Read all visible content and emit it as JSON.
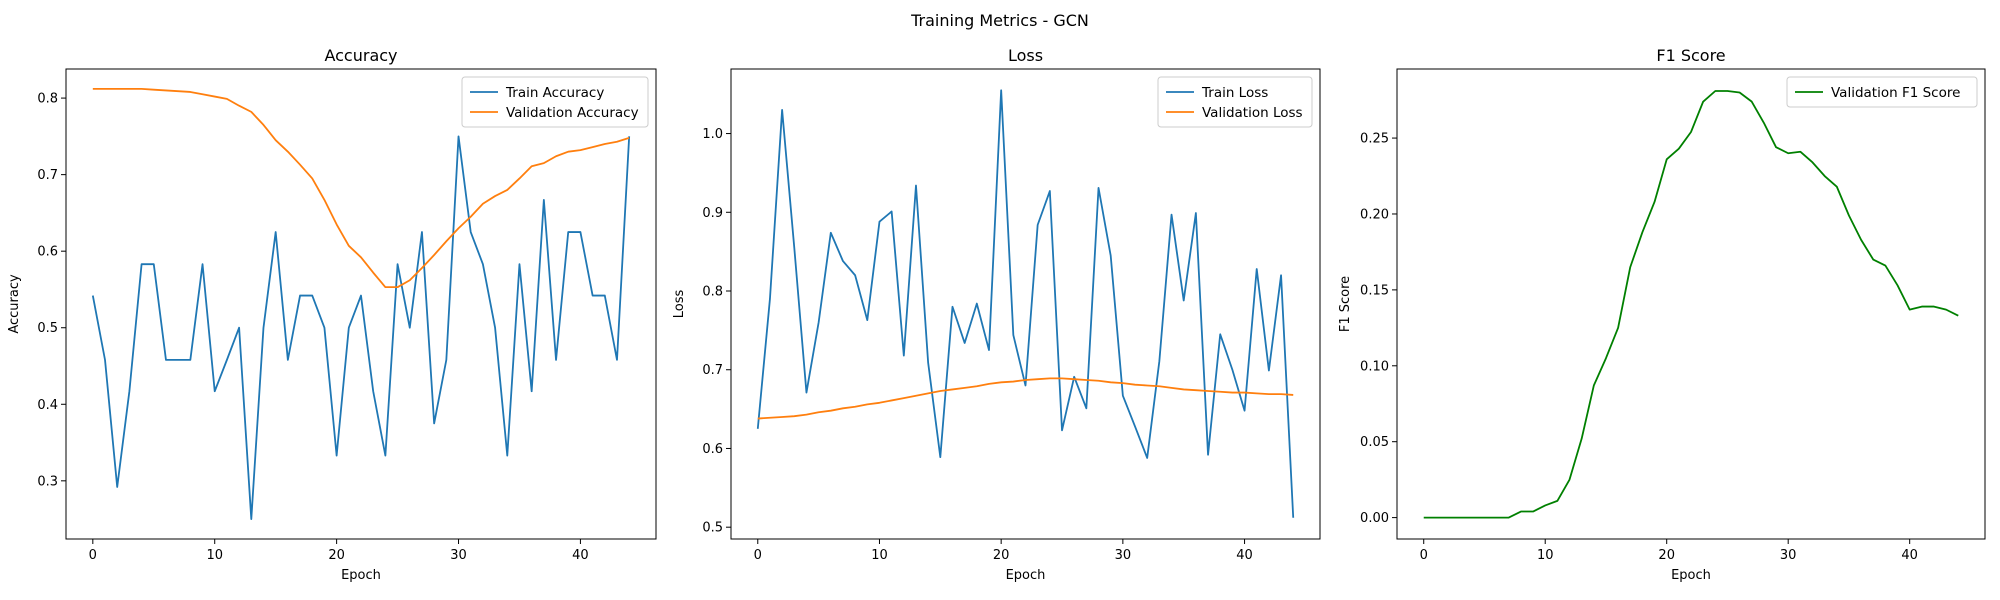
{
  "figure": {
    "title": "Training Metrics - GCN"
  },
  "chart_data": [
    {
      "type": "line",
      "title": "Accuracy",
      "xlabel": "Epoch",
      "ylabel": "Accuracy",
      "xlim": [
        -2.2,
        46.2
      ],
      "ylim": [
        0.224,
        0.838
      ],
      "xticks": [
        0,
        10,
        20,
        30,
        40
      ],
      "yticks": [
        0.3,
        0.4,
        0.5,
        0.6,
        0.7,
        0.8
      ],
      "ytick_labels": [
        "0.3",
        "0.4",
        "0.5",
        "0.6",
        "0.7",
        "0.8"
      ],
      "legend": "top-right",
      "series": [
        {
          "name": "Train Accuracy",
          "color": "#1f77b4",
          "x": [
            0,
            1,
            2,
            3,
            4,
            5,
            6,
            7,
            8,
            9,
            10,
            11,
            12,
            13,
            14,
            15,
            16,
            17,
            18,
            19,
            20,
            21,
            22,
            23,
            24,
            25,
            26,
            27,
            28,
            29,
            30,
            31,
            32,
            33,
            34,
            35,
            36,
            37,
            38,
            39,
            40,
            41,
            42,
            43,
            44
          ],
          "y": [
            0.542,
            0.458,
            0.292,
            0.417,
            0.583,
            0.583,
            0.458,
            0.458,
            0.458,
            0.583,
            0.417,
            0.458,
            0.5,
            0.25,
            0.5,
            0.625,
            0.458,
            0.542,
            0.542,
            0.5,
            0.333,
            0.5,
            0.542,
            0.417,
            0.333,
            0.583,
            0.5,
            0.625,
            0.375,
            0.458,
            0.75,
            0.625,
            0.583,
            0.5,
            0.333,
            0.583,
            0.417,
            0.667,
            0.458,
            0.625,
            0.625,
            0.542,
            0.542,
            0.458,
            0.75
          ]
        },
        {
          "name": "Validation Accuracy",
          "color": "#ff7f0e",
          "x": [
            0,
            1,
            2,
            3,
            4,
            5,
            6,
            7,
            8,
            9,
            10,
            11,
            12,
            13,
            14,
            15,
            16,
            17,
            18,
            19,
            20,
            21,
            22,
            23,
            24,
            25,
            26,
            27,
            28,
            29,
            30,
            31,
            32,
            33,
            34,
            35,
            36,
            37,
            38,
            39,
            40,
            41,
            42,
            43,
            44
          ],
          "y": [
            0.812,
            0.812,
            0.812,
            0.812,
            0.812,
            0.811,
            0.81,
            0.809,
            0.808,
            0.805,
            0.802,
            0.799,
            0.79,
            0.782,
            0.765,
            0.745,
            0.73,
            0.713,
            0.695,
            0.667,
            0.635,
            0.607,
            0.592,
            0.572,
            0.553,
            0.553,
            0.562,
            0.578,
            0.595,
            0.613,
            0.63,
            0.645,
            0.662,
            0.672,
            0.68,
            0.695,
            0.711,
            0.715,
            0.724,
            0.73,
            0.732,
            0.736,
            0.74,
            0.743,
            0.748
          ]
        }
      ]
    },
    {
      "type": "line",
      "title": "Loss",
      "xlabel": "Epoch",
      "ylabel": "Loss",
      "xlim": [
        -2.2,
        46.2
      ],
      "ylim": [
        0.485,
        1.082
      ],
      "xticks": [
        0,
        10,
        20,
        30,
        40
      ],
      "yticks": [
        0.5,
        0.6,
        0.7,
        0.8,
        0.9,
        1.0
      ],
      "ytick_labels": [
        "0.5",
        "0.6",
        "0.7",
        "0.8",
        "0.9",
        "1.0"
      ],
      "legend": "top-right",
      "series": [
        {
          "name": "Train Loss",
          "color": "#1f77b4",
          "x": [
            0,
            1,
            2,
            3,
            4,
            5,
            6,
            7,
            8,
            9,
            10,
            11,
            12,
            13,
            14,
            15,
            16,
            17,
            18,
            19,
            20,
            21,
            22,
            23,
            24,
            25,
            26,
            27,
            28,
            29,
            30,
            31,
            32,
            33,
            34,
            35,
            36,
            37,
            38,
            39,
            40,
            41,
            42,
            43,
            44
          ],
          "y": [
            0.625,
            0.79,
            1.03,
            0.855,
            0.671,
            0.76,
            0.874,
            0.838,
            0.82,
            0.763,
            0.888,
            0.901,
            0.718,
            0.934,
            0.709,
            0.589,
            0.78,
            0.734,
            0.784,
            0.725,
            1.055,
            0.744,
            0.68,
            0.884,
            0.927,
            0.623,
            0.691,
            0.651,
            0.931,
            0.845,
            0.667,
            0.628,
            0.588,
            0.711,
            0.897,
            0.788,
            0.899,
            0.592,
            0.745,
            0.7,
            0.648,
            0.828,
            0.699,
            0.82,
            0.512
          ]
        },
        {
          "name": "Validation Loss",
          "color": "#ff7f0e",
          "x": [
            0,
            1,
            2,
            3,
            4,
            5,
            6,
            7,
            8,
            9,
            10,
            11,
            12,
            13,
            14,
            15,
            16,
            17,
            18,
            19,
            20,
            21,
            22,
            23,
            24,
            25,
            26,
            27,
            28,
            29,
            30,
            31,
            32,
            33,
            34,
            35,
            36,
            37,
            38,
            39,
            40,
            41,
            42,
            43,
            44
          ],
          "y": [
            0.638,
            0.639,
            0.64,
            0.641,
            0.643,
            0.646,
            0.648,
            0.651,
            0.653,
            0.656,
            0.658,
            0.661,
            0.664,
            0.667,
            0.67,
            0.673,
            0.675,
            0.677,
            0.679,
            0.682,
            0.684,
            0.685,
            0.687,
            0.688,
            0.689,
            0.689,
            0.688,
            0.687,
            0.686,
            0.684,
            0.683,
            0.681,
            0.68,
            0.679,
            0.677,
            0.675,
            0.674,
            0.673,
            0.672,
            0.671,
            0.671,
            0.67,
            0.669,
            0.669,
            0.668
          ]
        }
      ]
    },
    {
      "type": "line",
      "title": "F1 Score",
      "xlabel": "Epoch",
      "ylabel": "F1 Score",
      "xlim": [
        -2.2,
        46.2
      ],
      "ylim": [
        -0.0141,
        0.2955
      ],
      "xticks": [
        0,
        10,
        20,
        30,
        40
      ],
      "yticks": [
        0.0,
        0.05,
        0.1,
        0.15,
        0.2,
        0.25
      ],
      "ytick_labels": [
        "0.00",
        "0.05",
        "0.10",
        "0.15",
        "0.20",
        "0.25"
      ],
      "legend": "top-right",
      "series": [
        {
          "name": "Validation F1 Score",
          "color": "#008000",
          "x": [
            0,
            1,
            2,
            3,
            4,
            5,
            6,
            7,
            8,
            9,
            10,
            11,
            12,
            13,
            14,
            15,
            16,
            17,
            18,
            19,
            20,
            21,
            22,
            23,
            24,
            25,
            26,
            27,
            28,
            29,
            30,
            31,
            32,
            33,
            34,
            35,
            36,
            37,
            38,
            39,
            40,
            41,
            42,
            43,
            44
          ],
          "y": [
            0,
            0,
            0,
            0,
            0,
            0,
            0,
            0,
            0.004,
            0.004,
            0.008,
            0.011,
            0.025,
            0.052,
            0.087,
            0.105,
            0.125,
            0.165,
            0.188,
            0.208,
            0.236,
            0.243,
            0.254,
            0.274,
            0.281,
            0.281,
            0.28,
            0.274,
            0.26,
            0.244,
            0.24,
            0.241,
            0.234,
            0.225,
            0.218,
            0.199,
            0.183,
            0.17,
            0.166,
            0.153,
            0.137,
            0.139,
            0.139,
            0.137,
            0.133
          ]
        }
      ]
    }
  ]
}
